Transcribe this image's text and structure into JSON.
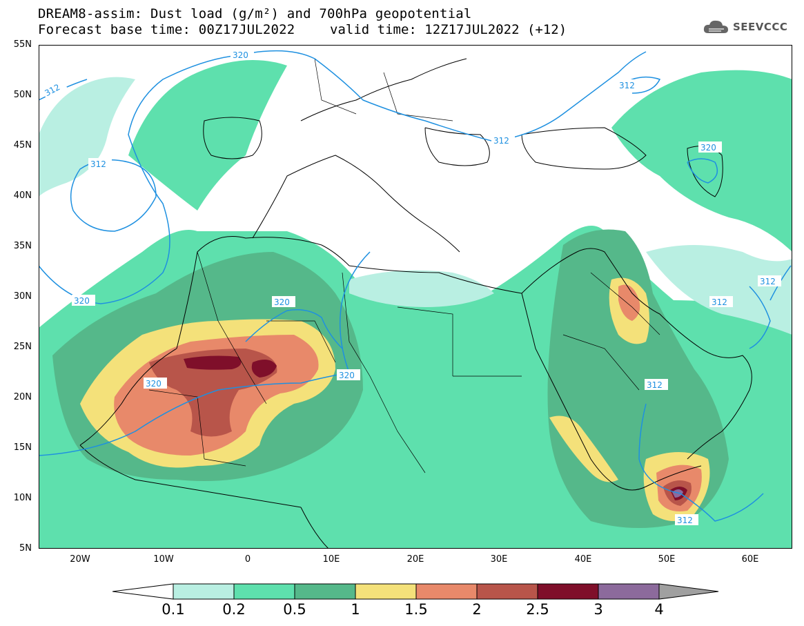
{
  "header": {
    "title_line1": "DREAM8-assim: Dust load (g/m²) and 700hPa geopotential",
    "title_line2_left": "Forecast base time: 00Z17JUL2022",
    "title_line2_right": "valid time: 12Z17JUL2022 (+12)",
    "logo_text": "SEEVCCC",
    "logo_icon": "cloud-logo-icon"
  },
  "map": {
    "lat_labels": [
      "55N",
      "50N",
      "45N",
      "40N",
      "35N",
      "30N",
      "25N",
      "20N",
      "15N",
      "10N",
      "5N"
    ],
    "lon_labels": [
      "20W",
      "10W",
      "0",
      "10E",
      "20E",
      "30E",
      "40E",
      "50E",
      "60E"
    ],
    "contour_labels": [
      "320",
      "312",
      "312",
      "320",
      "320",
      "320",
      "320",
      "312",
      "312",
      "320",
      "312",
      "312",
      "312",
      "312"
    ]
  },
  "colorbar": {
    "labels": [
      "0.1",
      "0.2",
      "0.5",
      "1",
      "1.5",
      "2",
      "2.5",
      "3",
      "4"
    ],
    "colors": [
      "#ffffff",
      "#b9efe2",
      "#5ee0ad",
      "#55b88a",
      "#f4e17a",
      "#e8896a",
      "#b8554a",
      "#7f0f2a",
      "#8c6a9c",
      "#a0a0a0"
    ]
  },
  "legend_colors": {
    "contour_line": "#1e90e0",
    "land_border": "#000000"
  }
}
